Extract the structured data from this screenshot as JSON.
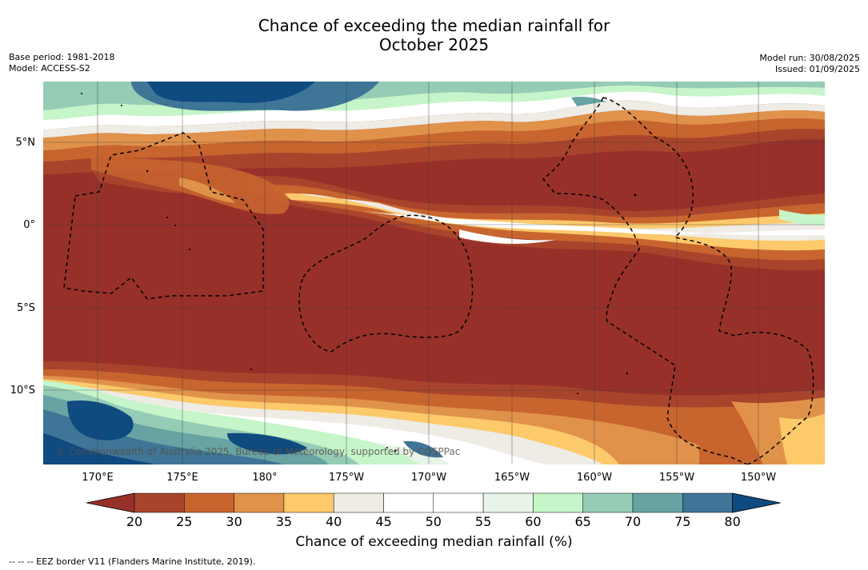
{
  "title_line1": "Chance of exceeding the median rainfall for",
  "title_line2": "October 2025",
  "base_period": "Base period: 1981-2018",
  "model": "Model: ACCESS-S2",
  "model_run": "Model run: 30/08/2025",
  "issued": "Issued: 01/09/2025",
  "credit": "© Commonwealth of Australia 2025, Bureau of Meteorology, supported by COSPPac",
  "lat_labels": [
    "5°N",
    "0°",
    "5°S",
    "10°S"
  ],
  "lon_labels": [
    "170°E",
    "175°E",
    "180°",
    "175°W",
    "170°W",
    "165°W",
    "160°W",
    "155°W",
    "150°W"
  ],
  "colorbar": {
    "label": "Chance of exceeding median rainfall (%)",
    "ticks": [
      "20",
      "25",
      "30",
      "35",
      "40",
      "45",
      "50",
      "55",
      "60",
      "65",
      "70",
      "75",
      "80"
    ],
    "colors": [
      "#a9442c",
      "#c8652f",
      "#e0924b",
      "#fcc96b",
      "#efebe5",
      "#ffffff",
      "#ffffff",
      "#e8f4e8",
      "#c5f5c9",
      "#96cbb5",
      "#67a3a3",
      "#3f7597"
    ],
    "under_color": "#98302a",
    "over_color": "#0f4a80"
  },
  "eez_legend": "--  --  -- EEZ border V11 (Flanders Marine Institute, 2019)."
}
